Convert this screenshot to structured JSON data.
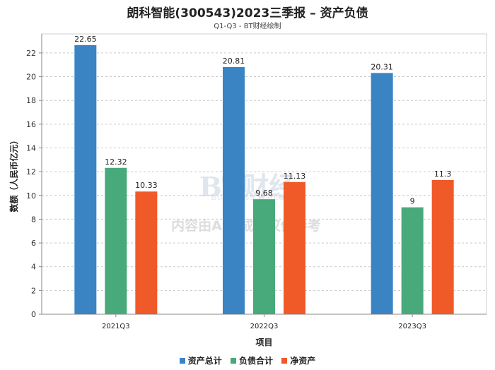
{
  "title": "朗科智能(300543)2023三季报 – 资产负债",
  "subtitle": "Q1-Q3 - BT财经绘制",
  "watermark": {
    "logo_text": "BT财经",
    "logo_sub": "BUSINESS TIMES",
    "notice": "内容由AI生成，仅供参考"
  },
  "chart_data": {
    "type": "bar",
    "categories": [
      "2021Q3",
      "2022Q3",
      "2023Q3"
    ],
    "series": [
      {
        "name": "资产总计",
        "values": [
          22.65,
          20.81,
          20.31
        ],
        "color": "#3a84c4"
      },
      {
        "name": "负债合计",
        "values": [
          12.32,
          9.68,
          9
        ],
        "color": "#48a97a"
      },
      {
        "name": "净资产",
        "values": [
          10.33,
          11.13,
          11.3
        ],
        "color": "#f05a28"
      }
    ],
    "value_labels": [
      [
        "22.65",
        "20.81",
        "20.31"
      ],
      [
        "12.32",
        "9.68",
        "9"
      ],
      [
        "10.33",
        "11.13",
        "11.3"
      ]
    ],
    "xlabel": "项目",
    "ylabel": "数额（人民币亿元）",
    "ylim": [
      0,
      23.6
    ],
    "yticks": [
      0,
      2,
      4,
      6,
      8,
      10,
      12,
      14,
      16,
      18,
      20,
      22
    ],
    "grid": true,
    "legend_position": "bottom"
  }
}
